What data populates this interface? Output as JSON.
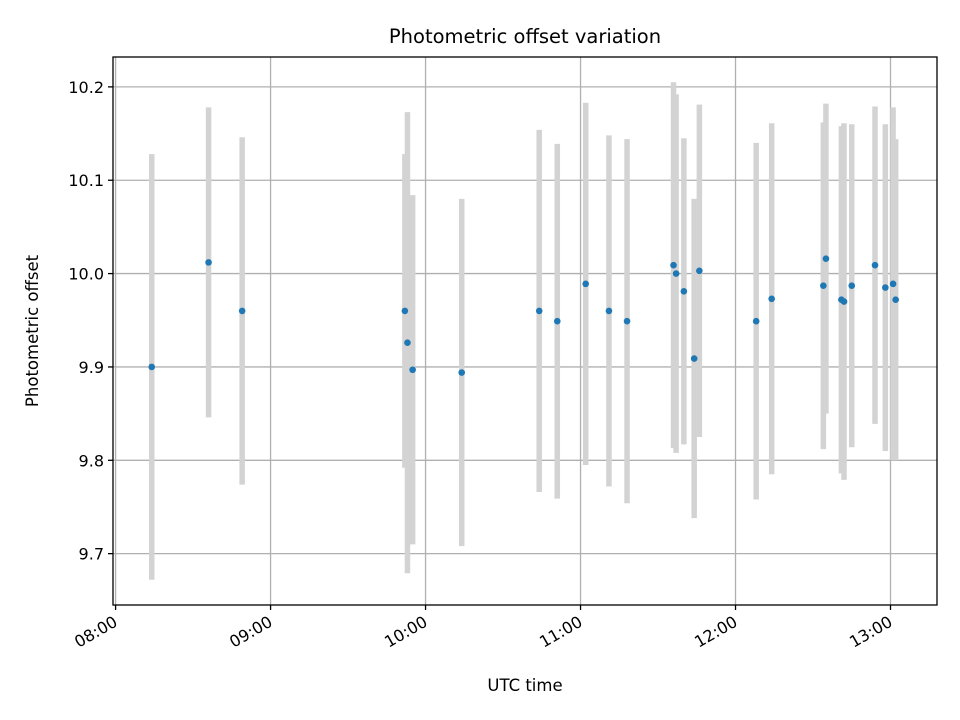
{
  "chart_data": {
    "type": "scatter",
    "title": "Photometric offset variation",
    "xlabel": "UTC time",
    "ylabel": "Photometric offset",
    "x_ticks": [
      "08:00",
      "09:00",
      "10:00",
      "11:00",
      "12:00",
      "13:00"
    ],
    "y_ticks": [
      "9.7",
      "9.8",
      "9.9",
      "10.0",
      "10.1",
      "10.2"
    ],
    "xlim": [
      "07:59",
      "13:18"
    ],
    "ylim": [
      9.645,
      10.232
    ],
    "grid": true,
    "colors": {
      "point": "#1f77b4",
      "errorbar": "#d3d3d3"
    },
    "points": [
      {
        "x": "08:14",
        "y": 9.9,
        "err": 0.228
      },
      {
        "x": "08:36",
        "y": 10.012,
        "err": 0.166
      },
      {
        "x": "08:49",
        "y": 9.96,
        "err": 0.186
      },
      {
        "x": "09:52",
        "y": 9.96,
        "err": 0.168
      },
      {
        "x": "09:53",
        "y": 9.926,
        "err": 0.247
      },
      {
        "x": "09:55",
        "y": 9.897,
        "err": 0.187
      },
      {
        "x": "10:14",
        "y": 9.894,
        "err": 0.186
      },
      {
        "x": "10:44",
        "y": 9.96,
        "err": 0.194
      },
      {
        "x": "10:51",
        "y": 9.949,
        "err": 0.19
      },
      {
        "x": "11:02",
        "y": 9.989,
        "err": 0.194
      },
      {
        "x": "11:11",
        "y": 9.96,
        "err": 0.188
      },
      {
        "x": "11:18",
        "y": 9.949,
        "err": 0.195
      },
      {
        "x": "11:36",
        "y": 10.009,
        "err": 0.196
      },
      {
        "x": "11:37",
        "y": 10.0,
        "err": 0.192
      },
      {
        "x": "11:40",
        "y": 9.981,
        "err": 0.164
      },
      {
        "x": "11:44",
        "y": 9.909,
        "err": 0.171
      },
      {
        "x": "11:46",
        "y": 10.003,
        "err": 0.178
      },
      {
        "x": "12:08",
        "y": 9.949,
        "err": 0.191
      },
      {
        "x": "12:14",
        "y": 9.973,
        "err": 0.188
      },
      {
        "x": "12:34",
        "y": 9.987,
        "err": 0.175
      },
      {
        "x": "12:35",
        "y": 10.016,
        "err": 0.166
      },
      {
        "x": "12:41",
        "y": 9.972,
        "err": 0.186
      },
      {
        "x": "12:42",
        "y": 9.97,
        "err": 0.191
      },
      {
        "x": "12:45",
        "y": 9.987,
        "err": 0.173
      },
      {
        "x": "12:54",
        "y": 10.009,
        "err": 0.17
      },
      {
        "x": "12:58",
        "y": 9.985,
        "err": 0.175
      },
      {
        "x": "13:01",
        "y": 9.989,
        "err": 0.189
      },
      {
        "x": "13:02",
        "y": 9.972,
        "err": 0.172
      }
    ]
  }
}
